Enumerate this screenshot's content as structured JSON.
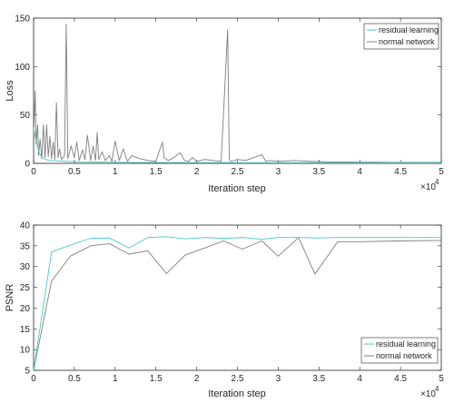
{
  "chart_data": [
    {
      "type": "line",
      "xlabel": "Iteration step",
      "ylabel": "Loss",
      "x_multiplier": "×10",
      "x_multiplier_exp": "4",
      "xlim": [
        0,
        5
      ],
      "ylim": [
        0,
        150
      ],
      "xticks": [
        0,
        0.5,
        1,
        1.5,
        2,
        2.5,
        3,
        3.5,
        4,
        4.5,
        5
      ],
      "xtick_labels": [
        "0",
        "0.5",
        "1",
        "1.5",
        "2",
        "2.5",
        "3",
        "3.5",
        "4",
        "4.5",
        "5"
      ],
      "yticks": [
        0,
        50,
        100,
        150
      ],
      "ytick_labels": [
        "0",
        "50",
        "100",
        "150"
      ],
      "grid": false,
      "legend_position": "top-right",
      "series": [
        {
          "name": "residual learning",
          "color": "#45c8c8",
          "x": [
            0,
            0.02,
            0.04,
            0.06,
            0.08,
            0.1,
            0.15,
            0.2,
            0.3,
            0.4,
            0.5,
            0.6,
            0.8,
            1.0,
            1.2,
            1.5,
            2.0,
            2.5,
            3.0,
            3.5,
            4.0,
            4.5,
            5.0
          ],
          "values": [
            36,
            28,
            20,
            14,
            9,
            6,
            4,
            3,
            2.5,
            2,
            1.8,
            1.5,
            1.3,
            1.1,
            1.0,
            0.9,
            0.8,
            0.7,
            0.6,
            0.6,
            0.5,
            0.5,
            0.5
          ]
        },
        {
          "name": "normal network",
          "color": "#7f7f7f",
          "x": [
            0,
            0.02,
            0.03,
            0.05,
            0.06,
            0.08,
            0.1,
            0.12,
            0.14,
            0.16,
            0.18,
            0.2,
            0.22,
            0.24,
            0.26,
            0.28,
            0.3,
            0.32,
            0.34,
            0.38,
            0.4,
            0.42,
            0.46,
            0.5,
            0.53,
            0.56,
            0.6,
            0.63,
            0.66,
            0.7,
            0.73,
            0.76,
            0.78,
            0.8,
            0.84,
            0.88,
            0.93,
            0.96,
            1.0,
            1.05,
            1.1,
            1.15,
            1.2,
            1.3,
            1.4,
            1.5,
            1.58,
            1.6,
            1.65,
            1.7,
            1.8,
            1.85,
            1.9,
            1.95,
            2.0,
            2.1,
            2.2,
            2.3,
            2.38,
            2.4,
            2.42,
            2.5,
            2.6,
            2.8,
            2.85,
            2.9,
            3.0,
            3.2,
            3.4,
            3.5,
            3.6,
            3.8,
            4.0,
            4.2,
            4.4,
            4.6,
            4.8,
            5.0
          ],
          "values": [
            30,
            75,
            20,
            40,
            8,
            25,
            5,
            40,
            6,
            40,
            7,
            28,
            5,
            22,
            4,
            63,
            6,
            15,
            4,
            8,
            144,
            5,
            18,
            6,
            22,
            3,
            14,
            4,
            29,
            3,
            18,
            3,
            32,
            4,
            12,
            3,
            8,
            2,
            23,
            3,
            15,
            2,
            8,
            5,
            3,
            2,
            22,
            6,
            3,
            5,
            11,
            3,
            2,
            6,
            2,
            4,
            3,
            2,
            138,
            4,
            2,
            4,
            3,
            9,
            2,
            3,
            2,
            3,
            2,
            2,
            1.5,
            1.5,
            1.2,
            1.2,
            1,
            1,
            1,
            1
          ]
        }
      ]
    },
    {
      "type": "line",
      "xlabel": "Iteration step",
      "ylabel": "PSNR",
      "x_multiplier": "×10",
      "x_multiplier_exp": "4",
      "xlim": [
        0,
        5
      ],
      "ylim": [
        5,
        40
      ],
      "xticks": [
        0,
        0.5,
        1,
        1.5,
        2,
        2.5,
        3,
        3.5,
        4,
        4.5,
        5
      ],
      "xtick_labels": [
        "0",
        "0.5",
        "1",
        "1.5",
        "2",
        "2.5",
        "3",
        "3.5",
        "4",
        "4.5",
        "5"
      ],
      "yticks": [
        5,
        10,
        15,
        20,
        25,
        30,
        35,
        40
      ],
      "ytick_labels": [
        "5",
        "10",
        "15",
        "20",
        "25",
        "30",
        "35",
        "40"
      ],
      "grid": false,
      "legend_position": "bottom-right",
      "series": [
        {
          "name": "residual learning",
          "color": "#45c8c8",
          "x": [
            0,
            0.22,
            0.45,
            0.7,
            0.93,
            1.17,
            1.4,
            1.63,
            1.86,
            2.1,
            2.33,
            2.56,
            2.8,
            3.0,
            3.25,
            3.5,
            3.73,
            4.0,
            4.5,
            5.0
          ],
          "values": [
            5,
            33.5,
            35.2,
            36.8,
            36.9,
            34.5,
            37.0,
            37.2,
            36.7,
            37.0,
            36.8,
            37.0,
            36.6,
            37.0,
            37.0,
            36.9,
            37.0,
            37.0,
            37.0,
            37.0
          ]
        },
        {
          "name": "normal network",
          "color": "#7f7f7f",
          "x": [
            0,
            0.22,
            0.45,
            0.7,
            0.93,
            1.17,
            1.4,
            1.63,
            1.86,
            2.1,
            2.33,
            2.56,
            2.8,
            3.0,
            3.25,
            3.45,
            3.73,
            4.0,
            4.5,
            5.0
          ],
          "values": [
            5,
            26.5,
            32.5,
            35.0,
            35.5,
            33.0,
            33.8,
            28.3,
            32.8,
            34.5,
            36.2,
            34.2,
            36.2,
            32.5,
            37.0,
            28.2,
            36.0,
            36.0,
            36.2,
            36.3
          ]
        }
      ]
    }
  ]
}
